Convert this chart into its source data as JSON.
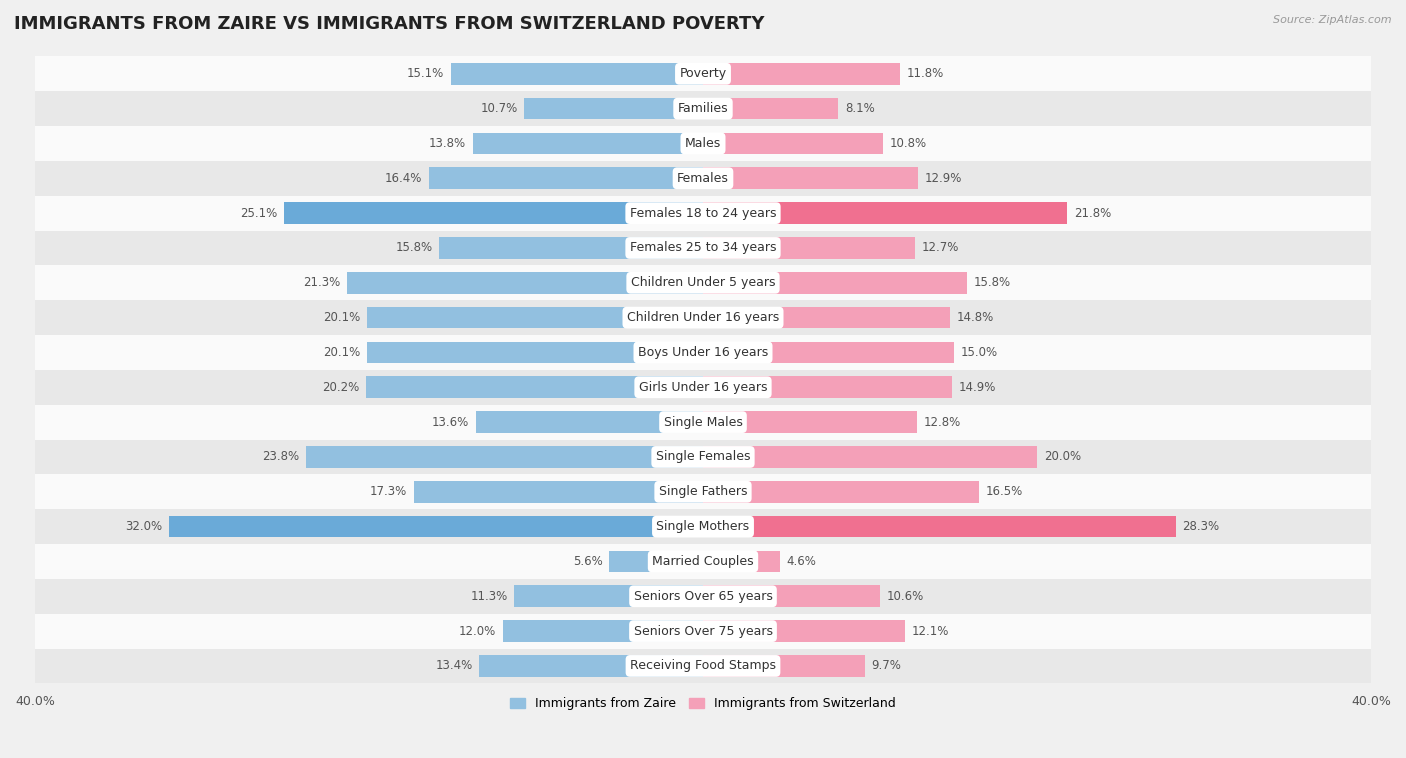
{
  "title": "IMMIGRANTS FROM ZAIRE VS IMMIGRANTS FROM SWITZERLAND POVERTY",
  "source": "Source: ZipAtlas.com",
  "categories": [
    "Poverty",
    "Families",
    "Males",
    "Females",
    "Females 18 to 24 years",
    "Females 25 to 34 years",
    "Children Under 5 years",
    "Children Under 16 years",
    "Boys Under 16 years",
    "Girls Under 16 years",
    "Single Males",
    "Single Females",
    "Single Fathers",
    "Single Mothers",
    "Married Couples",
    "Seniors Over 65 years",
    "Seniors Over 75 years",
    "Receiving Food Stamps"
  ],
  "zaire_values": [
    15.1,
    10.7,
    13.8,
    16.4,
    25.1,
    15.8,
    21.3,
    20.1,
    20.1,
    20.2,
    13.6,
    23.8,
    17.3,
    32.0,
    5.6,
    11.3,
    12.0,
    13.4
  ],
  "switzerland_values": [
    11.8,
    8.1,
    10.8,
    12.9,
    21.8,
    12.7,
    15.8,
    14.8,
    15.0,
    14.9,
    12.8,
    20.0,
    16.5,
    28.3,
    4.6,
    10.6,
    12.1,
    9.7
  ],
  "zaire_color": "#92c0e0",
  "switzerland_color": "#f4a0b8",
  "zaire_highlight_color": "#6aaad8",
  "switzerland_highlight_color": "#f07090",
  "highlight_rows": [
    4,
    13
  ],
  "background_color": "#f0f0f0",
  "row_bg_light": "#fafafa",
  "row_bg_dark": "#e8e8e8",
  "xlim": 40.0,
  "legend_label_zaire": "Immigrants from Zaire",
  "legend_label_switzerland": "Immigrants from Switzerland",
  "title_fontsize": 13,
  "label_fontsize": 9,
  "value_fontsize": 8.5
}
